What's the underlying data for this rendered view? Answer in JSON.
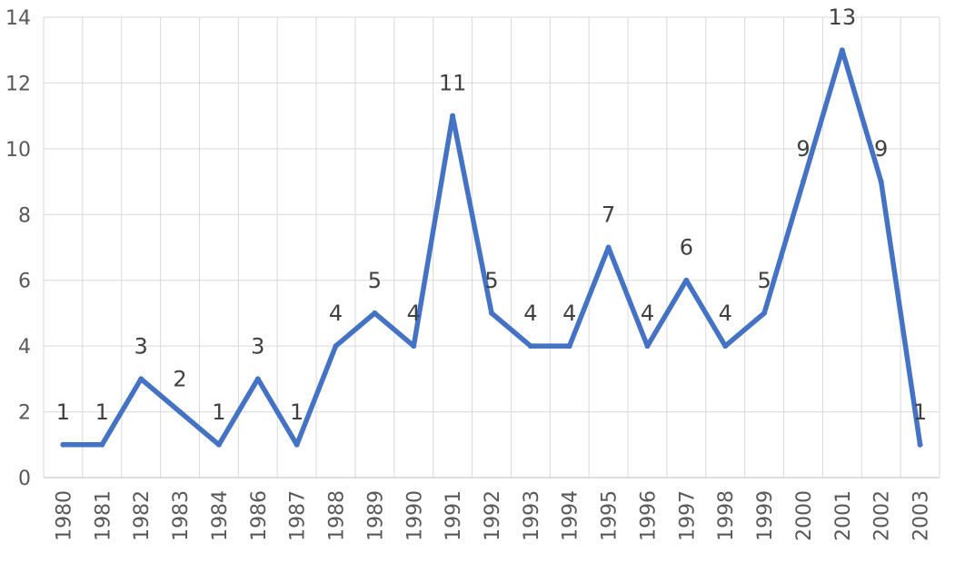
{
  "chart_data": {
    "type": "line",
    "title": "",
    "xlabel": "",
    "ylabel": "",
    "categories": [
      "1980",
      "1981",
      "1982",
      "1983",
      "1984",
      "1986",
      "1987",
      "1988",
      "1989",
      "1990",
      "1991",
      "1992",
      "1993",
      "1994",
      "1995",
      "1996",
      "1997",
      "1998",
      "1999",
      "2000",
      "2001",
      "2002",
      "2003"
    ],
    "series": [
      {
        "values": [
          1,
          1,
          3,
          2,
          1,
          3,
          1,
          4,
          5,
          4,
          11,
          5,
          4,
          4,
          7,
          4,
          6,
          4,
          5,
          9,
          13,
          9,
          1
        ]
      }
    ],
    "ylim": [
      0,
      14
    ],
    "yticks": [
      0,
      2,
      4,
      6,
      8,
      10,
      12,
      14
    ],
    "grid": true,
    "data_labels": true,
    "legend": "none",
    "colors": {
      "line": "#4472C4",
      "grid": "#D9D9D9",
      "tick_text": "#595959",
      "label_text": "#404040"
    }
  }
}
